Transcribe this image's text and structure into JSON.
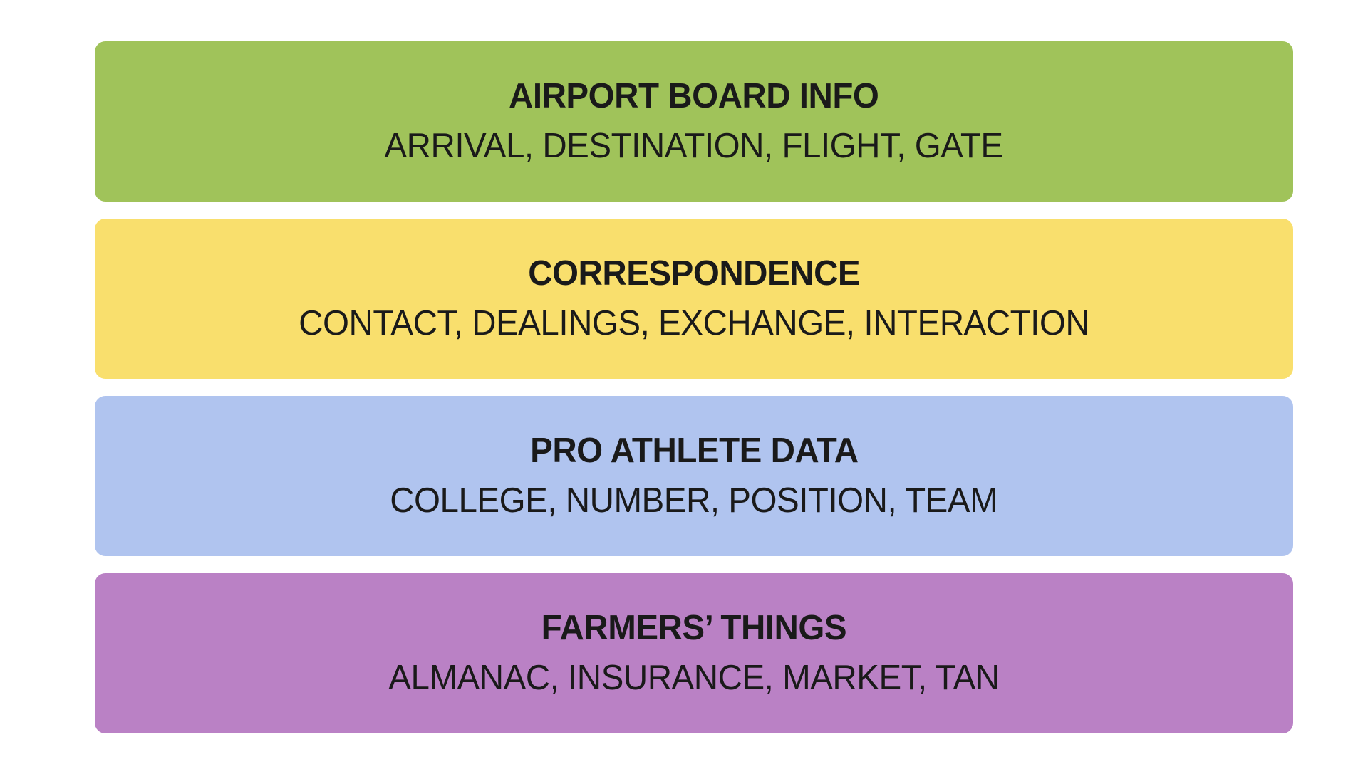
{
  "page": {
    "background_color": "#ffffff",
    "text_color": "#1a1a1a"
  },
  "groups": [
    {
      "name": "AIRPORT BOARD INFO",
      "words": "ARRIVAL, DESTINATION, FLIGHT, GATE",
      "color": "#A0C35A"
    },
    {
      "name": "CORRESPONDENCE",
      "words": "CONTACT, DEALINGS, EXCHANGE, INTERACTION",
      "color": "#F9DF6D"
    },
    {
      "name": "PRO ATHLETE DATA",
      "words": "COLLEGE, NUMBER, POSITION, TEAM",
      "color": "#B0C4EF"
    },
    {
      "name": "FARMERS’ THINGS",
      "words": "ALMANAC, INSURANCE, MARKET, TAN",
      "color": "#BA81C5"
    }
  ]
}
